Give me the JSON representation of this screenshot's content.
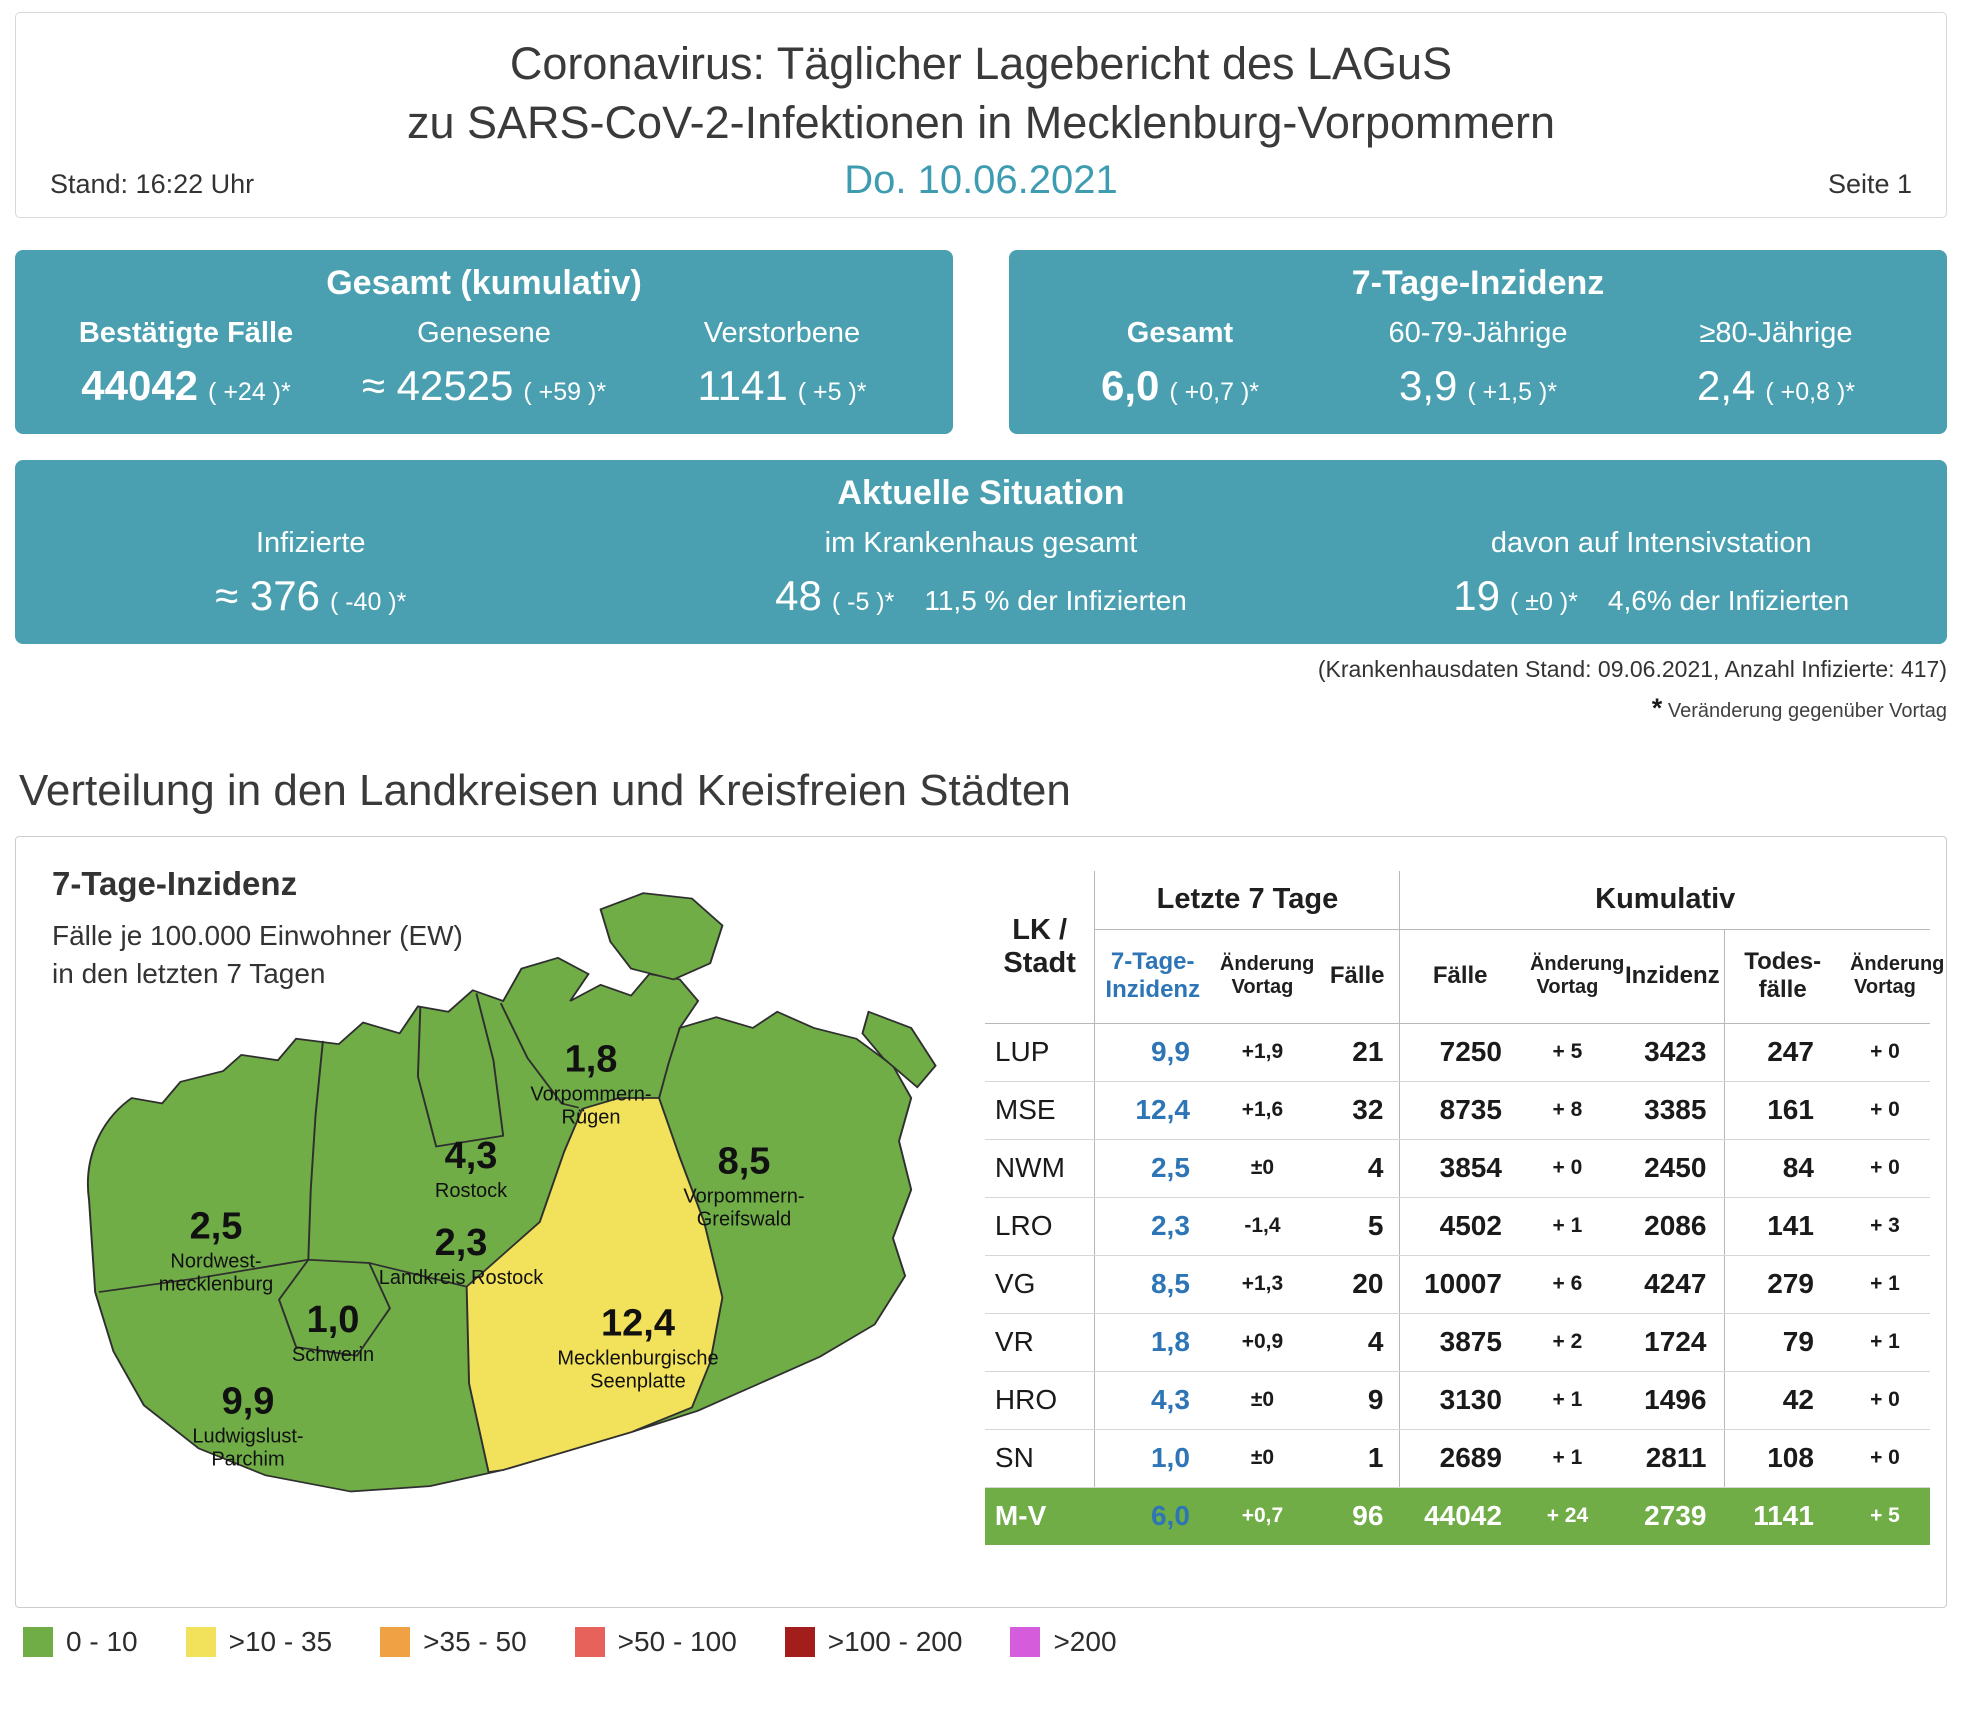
{
  "header": {
    "title_line1": "Coronavirus: Täglicher Lagebericht des LAGuS",
    "title_line2": "zu SARS-CoV-2-Infektionen in Mecklenburg-Vorpommern",
    "stand": "Stand: 16:22 Uhr",
    "date": "Do. 10.06.2021",
    "page": "Seite 1"
  },
  "cards": {
    "gesamt": {
      "title": "Gesamt (kumulativ)",
      "columns": [
        {
          "label": "Bestätigte Fälle",
          "value": "44042",
          "change": "( +24 )*"
        },
        {
          "label": "Genesene",
          "value": "≈ 42525",
          "change": "( +59 )*"
        },
        {
          "label": "Verstorbene",
          "value": "1141",
          "change": "( +5 )*"
        }
      ]
    },
    "inzidenz": {
      "title": "7-Tage-Inzidenz",
      "columns": [
        {
          "label": "Gesamt",
          "value": "6,0",
          "change": "( +0,7 )*"
        },
        {
          "label": "60-79-Jährige",
          "value": "3,9",
          "change": "( +1,5 )*"
        },
        {
          "label": "≥80-Jährige",
          "value": "2,4",
          "change": "( +0,8 )*"
        }
      ]
    },
    "situation": {
      "title": "Aktuelle Situation",
      "columns": [
        {
          "label": "Infizierte",
          "value": "≈ 376",
          "change": "( -40 )*",
          "extra": ""
        },
        {
          "label": "im Krankenhaus gesamt",
          "value": "48",
          "change": "( -5 )*",
          "extra": "11,5 % der Infizierten"
        },
        {
          "label": "davon auf Intensivstation",
          "value": "19",
          "change": "( ±0 )*",
          "extra": "4,6% der Infizierten"
        }
      ]
    }
  },
  "notes": {
    "hospital_note": "(Krankenhausdaten Stand: 09.06.2021, Anzahl Infizierte: 417)",
    "change_note_star": "*",
    "change_note": "Veränderung gegenüber Vortag"
  },
  "section_title": "Verteilung in den Landkreisen und Kreisfreien Städten",
  "map": {
    "title": "7-Tage-Inzidenz",
    "subtitle_line1": "Fälle je 100.000 Einwohner (EW)",
    "subtitle_line2": "in den letzten 7 Tagen",
    "colors": {
      "green": "#70ad47",
      "yellow": "#f2e15a",
      "border": "#2f2f2f"
    },
    "regions": [
      {
        "name": "Vorpommern-Rügen",
        "value": "1,8",
        "color": "#70ad47"
      },
      {
        "name": "Rostock",
        "value": "4,3",
        "color": "#70ad47"
      },
      {
        "name": "Vorpommern-Greifswald",
        "value": "8,5",
        "color": "#70ad47"
      },
      {
        "name": "Nordwest-mecklenburg",
        "value": "2,5",
        "color": "#70ad47"
      },
      {
        "name": "Landkreis Rostock",
        "value": "2,3",
        "color": "#70ad47"
      },
      {
        "name": "Schwerin",
        "value": "1,0",
        "color": "#70ad47"
      },
      {
        "name": "Mecklenburgische Seenplatte",
        "value": "12,4",
        "color": "#f2e15a"
      },
      {
        "name": "Ludwigslust-Parchim",
        "value": "9,9",
        "color": "#70ad47"
      }
    ]
  },
  "table": {
    "col0_header": "LK / Stadt",
    "group_last7": "Letzte 7 Tage",
    "group_kum": "Kumulativ",
    "sub_headers": [
      "7-Tage-Inzidenz",
      "Änderung Vortag",
      "Fälle",
      "Fälle",
      "Änderung Vortag",
      "Inzidenz",
      "Todes-fälle",
      "Änderung Vortag"
    ],
    "rows": [
      {
        "cells": [
          "LUP",
          "9,9",
          "+1,9",
          "21",
          "7250",
          "+ 5",
          "3423",
          "247",
          "+ 0"
        ]
      },
      {
        "cells": [
          "MSE",
          "12,4",
          "+1,6",
          "32",
          "8735",
          "+ 8",
          "3385",
          "161",
          "+ 0"
        ]
      },
      {
        "cells": [
          "NWM",
          "2,5",
          "±0",
          "4",
          "3854",
          "+ 0",
          "2450",
          "84",
          "+ 0"
        ]
      },
      {
        "cells": [
          "LRO",
          "2,3",
          "-1,4",
          "5",
          "4502",
          "+ 1",
          "2086",
          "141",
          "+ 3"
        ]
      },
      {
        "cells": [
          "VG",
          "8,5",
          "+1,3",
          "20",
          "10007",
          "+ 6",
          "4247",
          "279",
          "+ 1"
        ]
      },
      {
        "cells": [
          "VR",
          "1,8",
          "+0,9",
          "4",
          "3875",
          "+ 2",
          "1724",
          "79",
          "+ 1"
        ]
      },
      {
        "cells": [
          "HRO",
          "4,3",
          "±0",
          "9",
          "3130",
          "+ 1",
          "1496",
          "42",
          "+ 0"
        ]
      },
      {
        "cells": [
          "SN",
          "1,0",
          "±0",
          "1",
          "2689",
          "+ 1",
          "2811",
          "108",
          "+ 0"
        ]
      },
      {
        "cells": [
          "M-V",
          "6,0",
          "+0,7",
          "96",
          "44042",
          "+ 24",
          "2739",
          "1141",
          "+ 5"
        ],
        "highlight": true
      }
    ]
  },
  "legend": [
    {
      "label": "0 - 10",
      "color": "#70ad47"
    },
    {
      "label": ">10 - 35",
      "color": "#f2e15a"
    },
    {
      "label": ">35 - 50",
      "color": "#f0a143"
    },
    {
      "label": ">50 - 100",
      "color": "#e8625c"
    },
    {
      "label": ">100 - 200",
      "color": "#a31d1d"
    },
    {
      "label": ">200",
      "color": "#d55ddc"
    }
  ]
}
